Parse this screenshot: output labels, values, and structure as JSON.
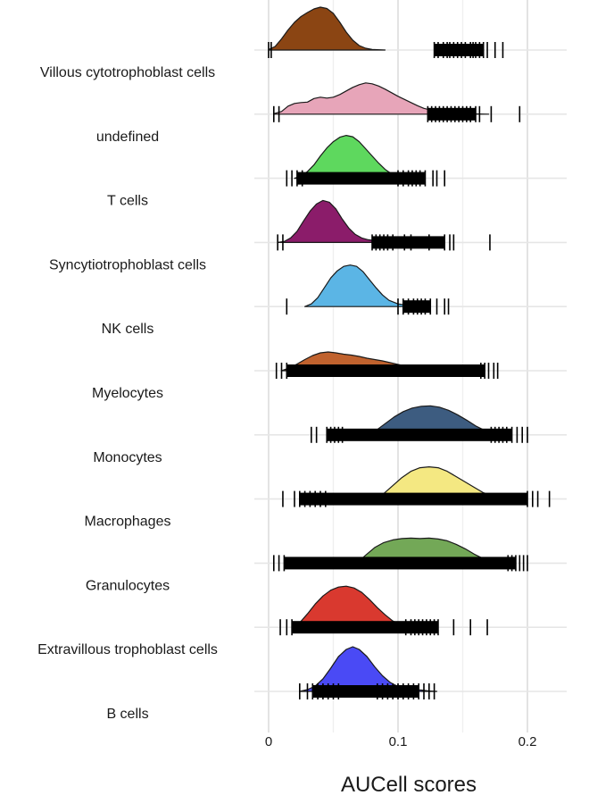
{
  "chart_data": {
    "type": "ridgeline",
    "title": "",
    "xlabel": "AUCell scores",
    "ylabel": "",
    "xlim": [
      -0.002,
      0.232
    ],
    "x_ticks": [
      0,
      0.1,
      0.2
    ],
    "x_tick_labels": [
      "0",
      "0.1",
      "0.2"
    ],
    "grid": true,
    "legend": "none",
    "categories": [
      "Villous cytotrophoblast cells",
      "undefined",
      "T cells",
      "Syncytiotrophoblast cells",
      "NK cells",
      "Myelocytes",
      "Monocytes",
      "Macrophages",
      "Granulocytes",
      "Extravillous trophoblast cells",
      "B cells"
    ],
    "series": [
      {
        "name": "Villous cytotrophoblast cells",
        "color": "#8b4513",
        "range": [
          0.0,
          0.181
        ],
        "density": [
          [
            0.0,
            0.01
          ],
          [
            0.005,
            0.08
          ],
          [
            0.01,
            0.25
          ],
          [
            0.015,
            0.45
          ],
          [
            0.02,
            0.62
          ],
          [
            0.025,
            0.75
          ],
          [
            0.03,
            0.84
          ],
          [
            0.035,
            0.92
          ],
          [
            0.04,
            0.96
          ],
          [
            0.045,
            0.93
          ],
          [
            0.05,
            0.82
          ],
          [
            0.055,
            0.62
          ],
          [
            0.06,
            0.4
          ],
          [
            0.065,
            0.22
          ],
          [
            0.07,
            0.1
          ],
          [
            0.075,
            0.04
          ],
          [
            0.08,
            0.015
          ],
          [
            0.09,
            0.0
          ]
        ],
        "rug": [
          0.0,
          0.002,
          0.128,
          0.131,
          0.135,
          0.138,
          0.14,
          0.143,
          0.146,
          0.149,
          0.152,
          0.156,
          0.158,
          0.16,
          0.163,
          0.166,
          0.169,
          0.175,
          0.181
        ]
      },
      {
        "name": "undefined",
        "color": "#e7a5b9",
        "range": [
          0.004,
          0.194
        ],
        "density": [
          [
            0.004,
            0.01
          ],
          [
            0.01,
            0.06
          ],
          [
            0.015,
            0.18
          ],
          [
            0.02,
            0.24
          ],
          [
            0.025,
            0.26
          ],
          [
            0.03,
            0.27
          ],
          [
            0.035,
            0.35
          ],
          [
            0.04,
            0.38
          ],
          [
            0.045,
            0.36
          ],
          [
            0.05,
            0.38
          ],
          [
            0.055,
            0.44
          ],
          [
            0.06,
            0.52
          ],
          [
            0.065,
            0.6
          ],
          [
            0.07,
            0.66
          ],
          [
            0.075,
            0.7
          ],
          [
            0.08,
            0.68
          ],
          [
            0.085,
            0.63
          ],
          [
            0.09,
            0.56
          ],
          [
            0.095,
            0.48
          ],
          [
            0.1,
            0.4
          ],
          [
            0.105,
            0.33
          ],
          [
            0.11,
            0.26
          ],
          [
            0.115,
            0.19
          ],
          [
            0.12,
            0.13
          ],
          [
            0.13,
            0.06
          ],
          [
            0.14,
            0.03
          ],
          [
            0.155,
            0.01
          ],
          [
            0.17,
            0.0
          ]
        ],
        "rug": [
          0.004,
          0.008,
          0.123,
          0.126,
          0.129,
          0.132,
          0.135,
          0.138,
          0.141,
          0.144,
          0.147,
          0.15,
          0.153,
          0.156,
          0.16,
          0.163,
          0.172,
          0.194
        ]
      },
      {
        "name": "T cells",
        "color": "#5ed85e",
        "range": [
          0.014,
          0.136
        ],
        "density": [
          [
            0.02,
            0.0
          ],
          [
            0.025,
            0.05
          ],
          [
            0.03,
            0.15
          ],
          [
            0.035,
            0.3
          ],
          [
            0.04,
            0.5
          ],
          [
            0.045,
            0.68
          ],
          [
            0.05,
            0.82
          ],
          [
            0.055,
            0.92
          ],
          [
            0.06,
            0.96
          ],
          [
            0.065,
            0.93
          ],
          [
            0.07,
            0.82
          ],
          [
            0.075,
            0.66
          ],
          [
            0.08,
            0.5
          ],
          [
            0.085,
            0.34
          ],
          [
            0.09,
            0.2
          ],
          [
            0.095,
            0.1
          ],
          [
            0.1,
            0.04
          ],
          [
            0.105,
            0.01
          ],
          [
            0.11,
            0.0
          ]
        ],
        "rug": [
          0.014,
          0.018,
          0.022,
          0.026,
          0.1,
          0.104,
          0.108,
          0.111,
          0.114,
          0.117,
          0.121,
          0.127,
          0.13,
          0.136
        ]
      },
      {
        "name": "Syncytiotrophoblast cells",
        "color": "#8b1c6a",
        "range": [
          0.007,
          0.171
        ],
        "density": [
          [
            0.007,
            0.0
          ],
          [
            0.012,
            0.02
          ],
          [
            0.017,
            0.1
          ],
          [
            0.022,
            0.25
          ],
          [
            0.027,
            0.48
          ],
          [
            0.032,
            0.7
          ],
          [
            0.037,
            0.86
          ],
          [
            0.042,
            0.94
          ],
          [
            0.047,
            0.9
          ],
          [
            0.052,
            0.75
          ],
          [
            0.057,
            0.52
          ],
          [
            0.062,
            0.32
          ],
          [
            0.067,
            0.18
          ],
          [
            0.072,
            0.1
          ],
          [
            0.077,
            0.06
          ],
          [
            0.085,
            0.03
          ],
          [
            0.095,
            0.01
          ],
          [
            0.105,
            0.0
          ]
        ],
        "rug": [
          0.007,
          0.011,
          0.08,
          0.083,
          0.086,
          0.089,
          0.092,
          0.096,
          0.105,
          0.11,
          0.124,
          0.136,
          0.14,
          0.143,
          0.171
        ]
      },
      {
        "name": "NK cells",
        "color": "#5bb5e5",
        "range": [
          0.014,
          0.139
        ],
        "density": [
          [
            0.028,
            0.0
          ],
          [
            0.033,
            0.06
          ],
          [
            0.038,
            0.2
          ],
          [
            0.043,
            0.42
          ],
          [
            0.048,
            0.64
          ],
          [
            0.053,
            0.8
          ],
          [
            0.058,
            0.9
          ],
          [
            0.063,
            0.93
          ],
          [
            0.068,
            0.9
          ],
          [
            0.073,
            0.78
          ],
          [
            0.078,
            0.6
          ],
          [
            0.083,
            0.42
          ],
          [
            0.088,
            0.26
          ],
          [
            0.093,
            0.14
          ],
          [
            0.1,
            0.06
          ],
          [
            0.11,
            0.02
          ],
          [
            0.12,
            0.0
          ]
        ],
        "rug": [
          0.014,
          0.1,
          0.104,
          0.108,
          0.112,
          0.115,
          0.118,
          0.121,
          0.125,
          0.13,
          0.136,
          0.139
        ]
      },
      {
        "name": "Myelocytes",
        "color": "#c0622e",
        "range": [
          0.006,
          0.177
        ],
        "density": [
          [
            0.01,
            0.0
          ],
          [
            0.016,
            0.06
          ],
          [
            0.022,
            0.15
          ],
          [
            0.028,
            0.25
          ],
          [
            0.034,
            0.34
          ],
          [
            0.04,
            0.4
          ],
          [
            0.046,
            0.42
          ],
          [
            0.052,
            0.4
          ],
          [
            0.058,
            0.37
          ],
          [
            0.064,
            0.35
          ],
          [
            0.07,
            0.32
          ],
          [
            0.076,
            0.28
          ],
          [
            0.082,
            0.25
          ],
          [
            0.088,
            0.22
          ],
          [
            0.094,
            0.18
          ],
          [
            0.1,
            0.14
          ],
          [
            0.106,
            0.1
          ],
          [
            0.112,
            0.06
          ],
          [
            0.118,
            0.03
          ],
          [
            0.126,
            0.0
          ]
        ],
        "rug": [
          0.006,
          0.01,
          0.014,
          0.164,
          0.167,
          0.17,
          0.174,
          0.177
        ]
      },
      {
        "name": "Monocytes",
        "color": "#3d5c80",
        "range": [
          0.033,
          0.2
        ],
        "density": [
          [
            0.076,
            0.0
          ],
          [
            0.083,
            0.1
          ],
          [
            0.09,
            0.25
          ],
          [
            0.097,
            0.4
          ],
          [
            0.104,
            0.52
          ],
          [
            0.111,
            0.6
          ],
          [
            0.118,
            0.64
          ],
          [
            0.125,
            0.65
          ],
          [
            0.132,
            0.62
          ],
          [
            0.139,
            0.55
          ],
          [
            0.146,
            0.45
          ],
          [
            0.153,
            0.33
          ],
          [
            0.16,
            0.2
          ],
          [
            0.167,
            0.1
          ],
          [
            0.174,
            0.04
          ],
          [
            0.18,
            0.0
          ]
        ],
        "rug": [
          0.033,
          0.037,
          0.045,
          0.048,
          0.051,
          0.054,
          0.057,
          0.172,
          0.175,
          0.178,
          0.181,
          0.184,
          0.188,
          0.192,
          0.196,
          0.2
        ]
      },
      {
        "name": "Macrophages",
        "color": "#f4e882",
        "range": [
          0.011,
          0.217
        ],
        "density": [
          [
            0.082,
            0.0
          ],
          [
            0.089,
            0.12
          ],
          [
            0.096,
            0.3
          ],
          [
            0.103,
            0.48
          ],
          [
            0.11,
            0.62
          ],
          [
            0.117,
            0.7
          ],
          [
            0.124,
            0.72
          ],
          [
            0.131,
            0.7
          ],
          [
            0.138,
            0.62
          ],
          [
            0.145,
            0.5
          ],
          [
            0.152,
            0.38
          ],
          [
            0.159,
            0.26
          ],
          [
            0.166,
            0.14
          ],
          [
            0.173,
            0.06
          ],
          [
            0.18,
            0.0
          ]
        ],
        "rug": [
          0.011,
          0.02,
          0.024,
          0.028,
          0.032,
          0.036,
          0.04,
          0.044,
          0.2,
          0.204,
          0.208,
          0.217
        ]
      },
      {
        "name": "Granulocytes",
        "color": "#73a857",
        "range": [
          0.004,
          0.2
        ],
        "density": [
          [
            0.068,
            0.0
          ],
          [
            0.075,
            0.18
          ],
          [
            0.082,
            0.35
          ],
          [
            0.089,
            0.46
          ],
          [
            0.096,
            0.52
          ],
          [
            0.103,
            0.55
          ],
          [
            0.11,
            0.56
          ],
          [
            0.117,
            0.55
          ],
          [
            0.124,
            0.56
          ],
          [
            0.131,
            0.54
          ],
          [
            0.138,
            0.5
          ],
          [
            0.145,
            0.42
          ],
          [
            0.152,
            0.32
          ],
          [
            0.159,
            0.2
          ],
          [
            0.166,
            0.1
          ],
          [
            0.173,
            0.0
          ]
        ],
        "rug": [
          0.004,
          0.008,
          0.012,
          0.185,
          0.188,
          0.191,
          0.194,
          0.197,
          0.2
        ]
      },
      {
        "name": "Extravillous trophoblast cells",
        "color": "#d9392f",
        "range": [
          0.009,
          0.169
        ],
        "density": [
          [
            0.018,
            0.0
          ],
          [
            0.024,
            0.1
          ],
          [
            0.03,
            0.3
          ],
          [
            0.036,
            0.52
          ],
          [
            0.042,
            0.7
          ],
          [
            0.048,
            0.83
          ],
          [
            0.054,
            0.9
          ],
          [
            0.06,
            0.92
          ],
          [
            0.066,
            0.88
          ],
          [
            0.072,
            0.78
          ],
          [
            0.078,
            0.62
          ],
          [
            0.084,
            0.44
          ],
          [
            0.09,
            0.28
          ],
          [
            0.096,
            0.14
          ],
          [
            0.102,
            0.06
          ],
          [
            0.11,
            0.02
          ],
          [
            0.12,
            0.0
          ]
        ],
        "rug": [
          0.009,
          0.014,
          0.018,
          0.106,
          0.11,
          0.113,
          0.116,
          0.119,
          0.122,
          0.125,
          0.128,
          0.131,
          0.143,
          0.156,
          0.169
        ]
      },
      {
        "name": "B cells",
        "color": "#4a4af5",
        "range": [
          0.024,
          0.128
        ],
        "density": [
          [
            0.024,
            0.0
          ],
          [
            0.03,
            0.04
          ],
          [
            0.036,
            0.12
          ],
          [
            0.042,
            0.28
          ],
          [
            0.048,
            0.52
          ],
          [
            0.054,
            0.78
          ],
          [
            0.06,
            0.94
          ],
          [
            0.065,
            1.0
          ],
          [
            0.07,
            0.94
          ],
          [
            0.076,
            0.78
          ],
          [
            0.082,
            0.55
          ],
          [
            0.088,
            0.35
          ],
          [
            0.094,
            0.2
          ],
          [
            0.1,
            0.11
          ],
          [
            0.106,
            0.06
          ],
          [
            0.112,
            0.04
          ],
          [
            0.118,
            0.03
          ],
          [
            0.124,
            0.01
          ],
          [
            0.13,
            0.0
          ]
        ],
        "rug": [
          0.024,
          0.03,
          0.034,
          0.038,
          0.042,
          0.046,
          0.05,
          0.054,
          0.084,
          0.088,
          0.092,
          0.096,
          0.1,
          0.104,
          0.108,
          0.112,
          0.116,
          0.12,
          0.124,
          0.128
        ]
      }
    ]
  }
}
